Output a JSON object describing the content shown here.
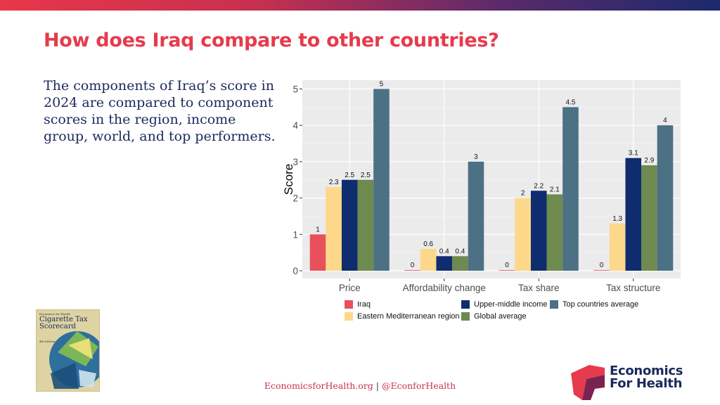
{
  "header": {
    "title": "How does Iraq compare to other countries?"
  },
  "description": "The components of Iraq’s score in 2024 are compared to component scores in the region, income group, world, and top performers.",
  "chart_data": {
    "type": "bar",
    "categories": [
      "Price",
      "Affordability change",
      "Tax share",
      "Tax structure"
    ],
    "series": [
      {
        "name": "Iraq",
        "color": "#e8505b",
        "values": [
          1,
          0,
          0,
          0
        ]
      },
      {
        "name": "Eastern Mediterranean region",
        "color": "#fdd88a",
        "values": [
          2.3,
          0.6,
          2,
          1.3
        ]
      },
      {
        "name": "Upper-middle income",
        "color": "#0f2d6e",
        "values": [
          2.5,
          0.4,
          2.2,
          3.1
        ]
      },
      {
        "name": "Global average",
        "color": "#6e8a4e",
        "values": [
          2.5,
          0.4,
          2.1,
          2.9
        ]
      },
      {
        "name": "Top countries average",
        "color": "#4c7084",
        "values": [
          5,
          3,
          4.5,
          4
        ]
      }
    ],
    "ylabel": "Score",
    "xlabel": "",
    "ylim": [
      0,
      5.2
    ],
    "yticks": [
      0,
      1,
      2,
      3,
      4,
      5
    ],
    "grid": true,
    "legend_position": "bottom"
  },
  "cover": {
    "publisher": "Economics for Health",
    "title": "Cigarette Tax Scorecard",
    "edition": "4th Edition"
  },
  "footer": {
    "site": "EconomicsforHealth.org",
    "separator": "|",
    "handle": "@EconforHealth"
  },
  "logo": {
    "line1": "Economics",
    "line2": "For Health"
  }
}
